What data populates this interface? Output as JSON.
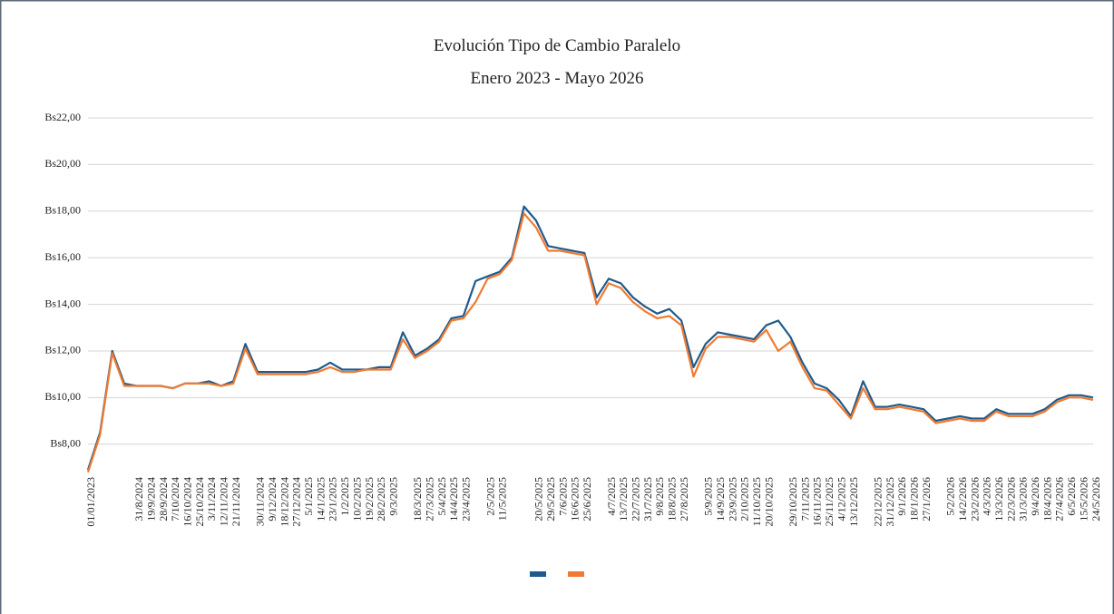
{
  "chart_data": {
    "type": "line",
    "title": "Evolución Tipo de Cambio Paralelo",
    "subtitle": "Enero 2023 - Mayo 2026",
    "categories": [
      "01/01/2023",
      null,
      null,
      null,
      "31/8/2024",
      "19/9/2024",
      "28/9/2024",
      "7/10/2024",
      "16/10/2024",
      "25/10/2024",
      "3/11/2024",
      "12/11/2024",
      "21/11/2024",
      null,
      "30/11/2024",
      "9/12/2024",
      "18/12/2024",
      "27/12/2024",
      "5/1/2025",
      "14/1/2025",
      "23/1/2025",
      "1/2/2025",
      "10/2/2025",
      "19/2/2025",
      "28/2/2025",
      "9/3/2025",
      null,
      "18/3/2025",
      "27/3/2025",
      "5/4/2025",
      "14/4/2025",
      "23/4/2025",
      null,
      "2/5/2025",
      "11/5/2025",
      null,
      null,
      "20/5/2025",
      "29/5/2025",
      "7/6/2025",
      "16/6/2025",
      "25/6/2025",
      null,
      "4/7/2025",
      "13/7/2025",
      "22/7/2025",
      "31/7/2025",
      "9/8/2025",
      "18/8/2025",
      "27/8/2025",
      null,
      "5/9/2025",
      "14/9/2025",
      "23/9/2025",
      "2/10/2025",
      "11/10/2025",
      "20/10/2025",
      null,
      "29/10/2025",
      "7/11/2025",
      "16/11/2025",
      "25/11/2025",
      "4/12/2025",
      "13/12/2025",
      null,
      "22/12/2025",
      "31/12/2025",
      "9/1/2026",
      "18/1/2026",
      "27/1/2026",
      null,
      "5/2/2026",
      "14/2/2026",
      "23/2/2026",
      "4/3/2026",
      "13/3/2026",
      "22/3/2026",
      "31/3/2026",
      "9/4/2026",
      "18/4/2026",
      "27/4/2026",
      "6/5/2026",
      "15/5/2026",
      "24/5/2026"
    ],
    "series": [
      {
        "color": "#1f5a8c",
        "values": [
          6.9,
          8.5,
          12.0,
          10.6,
          10.5,
          10.5,
          10.5,
          10.4,
          10.6,
          10.6,
          10.7,
          10.5,
          10.7,
          12.3,
          11.1,
          11.1,
          11.1,
          11.1,
          11.1,
          11.2,
          11.5,
          11.2,
          11.2,
          11.2,
          11.3,
          11.3,
          12.8,
          11.8,
          12.1,
          12.5,
          13.4,
          13.5,
          15.0,
          15.2,
          15.4,
          16.0,
          18.2,
          17.6,
          16.5,
          16.4,
          16.3,
          16.2,
          14.3,
          15.1,
          14.9,
          14.3,
          13.9,
          13.6,
          13.8,
          13.3,
          11.3,
          12.3,
          12.8,
          12.7,
          12.6,
          12.5,
          13.1,
          13.3,
          12.6,
          11.5,
          10.6,
          10.4,
          9.9,
          9.2,
          10.7,
          9.6,
          9.6,
          9.7,
          9.6,
          9.5,
          9.0,
          9.1,
          9.2,
          9.1,
          9.1,
          9.5,
          9.3,
          9.3,
          9.3,
          9.5,
          9.9,
          10.1,
          10.1,
          10.0
        ]
      },
      {
        "color": "#f07a30",
        "values": [
          6.8,
          8.4,
          11.9,
          10.5,
          10.5,
          10.5,
          10.5,
          10.4,
          10.6,
          10.6,
          10.6,
          10.5,
          10.6,
          12.1,
          11.0,
          11.0,
          11.0,
          11.0,
          11.0,
          11.1,
          11.3,
          11.1,
          11.1,
          11.2,
          11.2,
          11.2,
          12.5,
          11.7,
          12.0,
          12.4,
          13.3,
          13.4,
          14.1,
          15.1,
          15.3,
          15.9,
          17.9,
          17.3,
          16.3,
          16.3,
          16.2,
          16.1,
          14.0,
          14.9,
          14.7,
          14.1,
          13.7,
          13.4,
          13.5,
          13.1,
          10.9,
          12.1,
          12.6,
          12.6,
          12.5,
          12.4,
          12.9,
          12.0,
          12.4,
          11.3,
          10.4,
          10.3,
          9.7,
          9.1,
          10.4,
          9.5,
          9.5,
          9.6,
          9.5,
          9.4,
          8.9,
          9.0,
          9.1,
          9.0,
          9.0,
          9.4,
          9.2,
          9.2,
          9.2,
          9.4,
          9.8,
          10.0,
          10.0,
          9.9
        ]
      }
    ],
    "ylim": [
      6.9,
      22
    ],
    "yticks": [
      {
        "value": 8,
        "label": "Bs8,00"
      },
      {
        "value": 10,
        "label": "Bs10,00"
      },
      {
        "value": 12,
        "label": "Bs12,00"
      },
      {
        "value": 14,
        "label": "Bs14,00"
      },
      {
        "value": 16,
        "label": "Bs16,00"
      },
      {
        "value": 18,
        "label": "Bs18,00"
      },
      {
        "value": 20,
        "label": "Bs20,00"
      },
      {
        "value": 22,
        "label": "Bs22,00"
      }
    ],
    "grid": true,
    "legend": "bottom"
  }
}
